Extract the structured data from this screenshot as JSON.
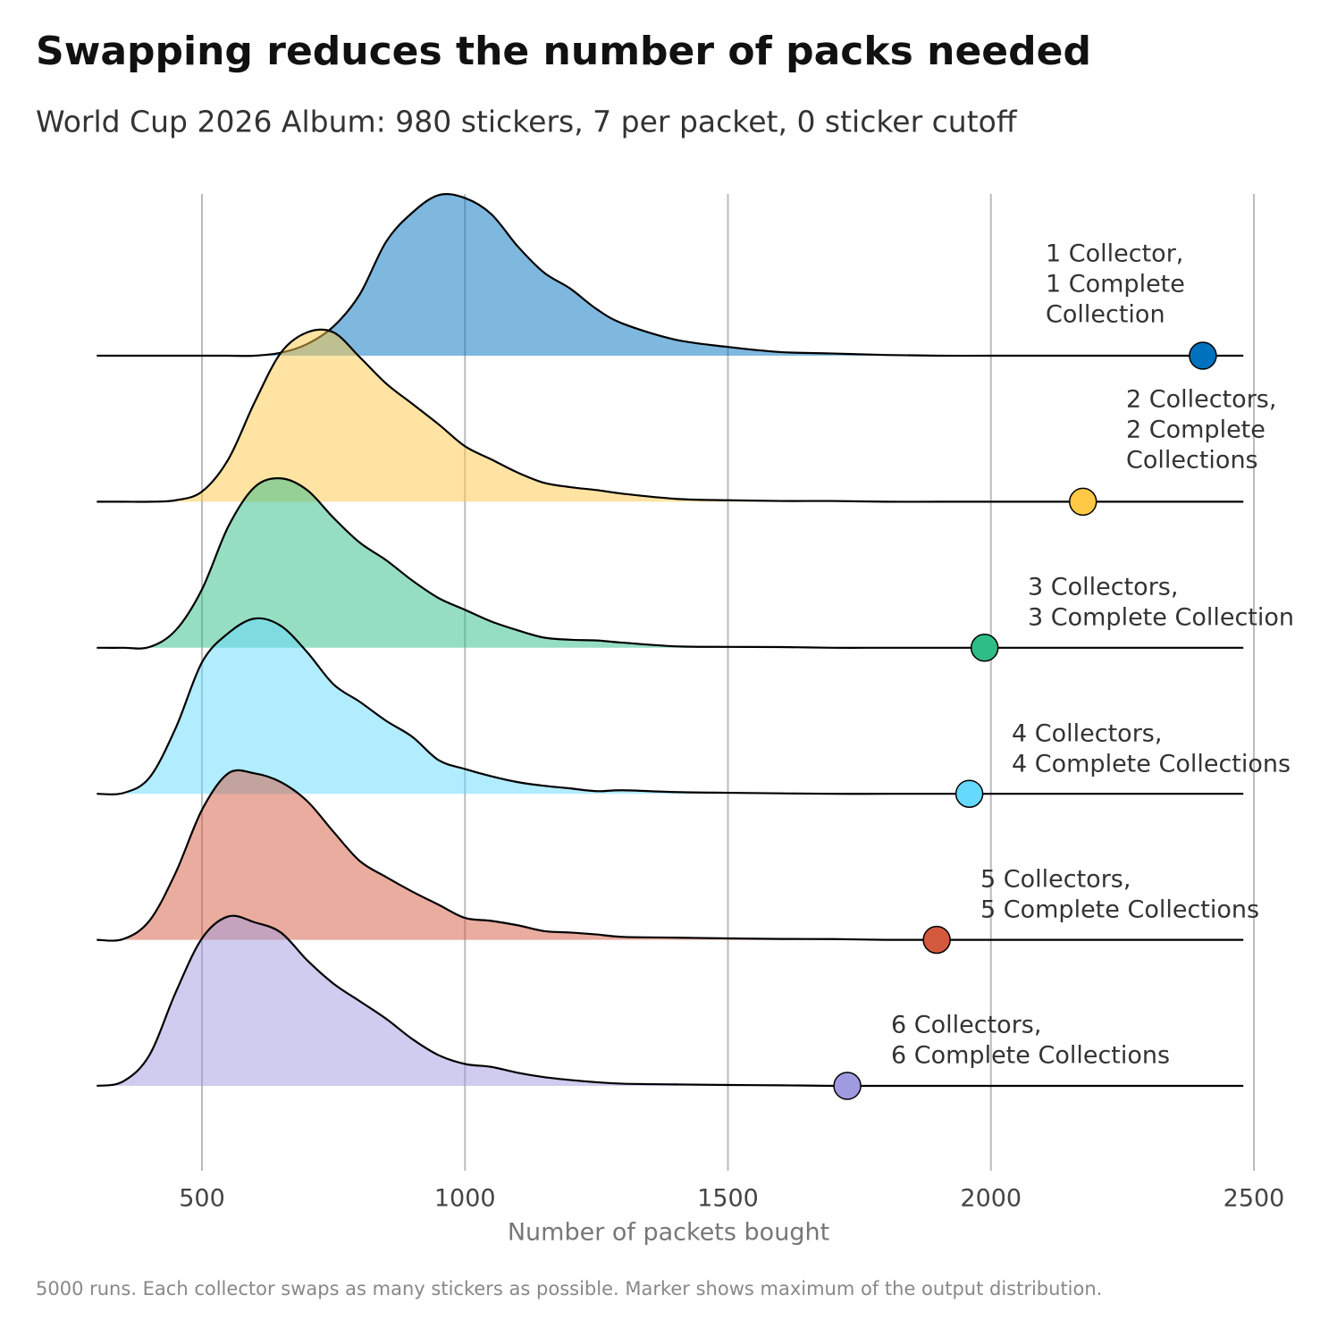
{
  "chart_data": {
    "type": "ridgeline",
    "title": "Swapping reduces the number of packs needed",
    "subtitle": "World Cup 2026 Album: 980 stickers, 7 per packet, 0 sticker cutoff",
    "x_label": "Number of packets bought",
    "footnote": "5000 runs. Each collector swaps as many stickers as possible. Marker shows maximum of the output distribution.",
    "xlim": [
      291,
      2483
    ],
    "xticks": [
      500,
      1000,
      1500,
      2000,
      2500
    ],
    "grid": true,
    "x": [
      300,
      350,
      400,
      450,
      500,
      550,
      600,
      650,
      700,
      750,
      800,
      850,
      900,
      950,
      1000,
      1050,
      1100,
      1150,
      1200,
      1250,
      1300,
      1400,
      1500,
      1600,
      1700,
      1800,
      1900,
      2000,
      2100,
      2200,
      2300,
      2400,
      2480
    ],
    "series": [
      {
        "name": [
          "1 Collector,",
          "1 Complete",
          "Collection"
        ],
        "color": "#0072bd",
        "max": 2403,
        "values": [
          0,
          0,
          0,
          0,
          0,
          0,
          0,
          0.02,
          0.08,
          0.2,
          0.42,
          0.78,
          0.98,
          1.1,
          1.08,
          0.97,
          0.75,
          0.57,
          0.46,
          0.32,
          0.22,
          0.11,
          0.06,
          0.025,
          0.015,
          0.005,
          0,
          0,
          0,
          0,
          0,
          0,
          0
        ]
      },
      {
        "name": [
          "2 Collectors,",
          "2 Complete",
          "Collections"
        ],
        "color": "#ffc845",
        "max": 2175,
        "values": [
          0,
          0,
          0,
          0.01,
          0.07,
          0.29,
          0.68,
          1.02,
          1.16,
          1.16,
          0.99,
          0.81,
          0.67,
          0.53,
          0.38,
          0.29,
          0.2,
          0.13,
          0.1,
          0.08,
          0.055,
          0.02,
          0.01,
          0.005,
          0.005,
          0,
          0,
          0,
          0,
          0,
          0,
          0,
          0
        ]
      },
      {
        "name": [
          "3 Collectors,",
          "3 Complete Collection"
        ],
        "color": "#2ebd86",
        "max": 1988,
        "values": [
          0,
          0,
          0.005,
          0.12,
          0.4,
          0.83,
          1.1,
          1.16,
          1.08,
          0.89,
          0.72,
          0.6,
          0.46,
          0.34,
          0.26,
          0.18,
          0.12,
          0.07,
          0.055,
          0.05,
          0.035,
          0.01,
          0.006,
          0.005,
          0,
          0,
          0,
          0,
          0,
          0,
          0,
          0,
          0
        ]
      },
      {
        "name": [
          "4 Collectors,",
          "4 Complete Collections"
        ],
        "color": "#66d9ff",
        "max": 1959,
        "values": [
          0,
          0.005,
          0.11,
          0.45,
          0.9,
          1.1,
          1.2,
          1.15,
          0.97,
          0.75,
          0.63,
          0.5,
          0.39,
          0.23,
          0.17,
          0.12,
          0.08,
          0.055,
          0.037,
          0.018,
          0.024,
          0.012,
          0.007,
          0.003,
          0,
          0,
          0,
          0,
          0,
          0,
          0,
          0,
          0
        ]
      },
      {
        "name": [
          "5 Collectors,",
          "5 Complete Collections"
        ],
        "color": "#d35a3e",
        "max": 1897,
        "values": [
          0,
          0.005,
          0.13,
          0.46,
          0.89,
          1.14,
          1.14,
          1.08,
          0.95,
          0.74,
          0.54,
          0.43,
          0.33,
          0.24,
          0.15,
          0.13,
          0.1,
          0.06,
          0.05,
          0.037,
          0.02,
          0.015,
          0.01,
          0.006,
          0.005,
          0,
          0,
          0,
          0,
          0,
          0,
          0,
          0
        ]
      },
      {
        "name": [
          "6 Collectors,",
          "6 Complete Collections"
        ],
        "color": "#a09ae0",
        "max": 1727,
        "values": [
          0,
          0.03,
          0.21,
          0.64,
          1.01,
          1.16,
          1.12,
          1.05,
          0.86,
          0.7,
          0.58,
          0.46,
          0.32,
          0.21,
          0.15,
          0.13,
          0.09,
          0.06,
          0.04,
          0.025,
          0.015,
          0.01,
          0.006,
          0.004,
          0,
          0,
          0,
          0,
          0,
          0,
          0,
          0,
          0
        ]
      }
    ]
  }
}
